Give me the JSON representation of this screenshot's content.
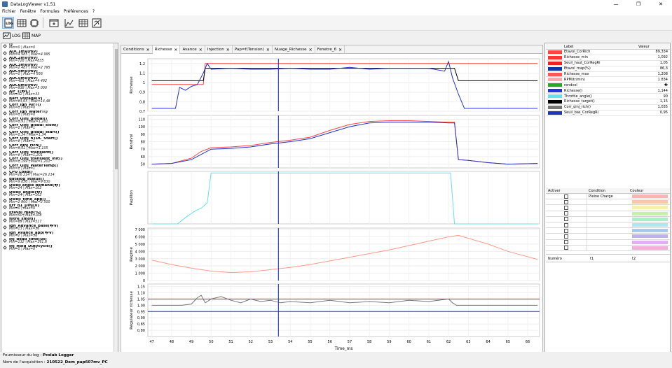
{
  "window": {
    "title": "DataLogViewer v1.51",
    "minimize": "—",
    "maximize": "❐",
    "close": "✕"
  },
  "menu": [
    "Fichier",
    "Fenêtre",
    "Formules",
    "Préférences",
    "?"
  ],
  "subtool": {
    "log_label": "LOG",
    "map_label": "MAP"
  },
  "tabs": [
    {
      "label": "Conditions"
    },
    {
      "label": "Richesse",
      "selected": true
    },
    {
      "label": "Avance"
    },
    {
      "label": "Injection"
    },
    {
      "label": "Pap=f(Tension)"
    },
    {
      "label": "Nuage_Richesse"
    },
    {
      "label": "Fenetre_6"
    }
  ],
  "variables": [
    {
      "name": "()",
      "range": "Min=0 | Max=0"
    },
    {
      "name": "ADC1mV(mV)",
      "range": "Min=4 985 | Max=4 995"
    },
    {
      "name": "ADC2mV(mV)",
      "range": "Min=728 | Max=835"
    },
    {
      "name": "ADC3mV(mV)",
      "range": "Min=2 487 | Max=2 795"
    },
    {
      "name": "ADC4mV(mV)",
      "range": "Min=0 | Max=4 956"
    },
    {
      "name": "ADC5mV(mV)",
      "range": "Min=401 | Max=4 492"
    },
    {
      "name": "ADC6mV(mV)",
      "range": "Min=938 | Max=5 000"
    },
    {
      "name": "Air_T(�C)",
      "range": "Min=32 | Max=33"
    },
    {
      "name": "Batt_voltage(V)",
      "range": "Min=13,65 | Max=14,48"
    },
    {
      "name": "Corr_Ign_AirT()",
      "range": "Min=0 | Max=0"
    },
    {
      "name": "Corr_Ign_WaterT()",
      "range": "Min=0 | Max=0"
    },
    {
      "name": "Corr_Qinj_global()",
      "range": "Min=0,91 | Max=1,201"
    },
    {
      "name": "Corr_Qinj_global_slow()",
      "range": "Min=1 | Max=1"
    },
    {
      "name": "Corr_Qinj_global_start()",
      "range": "Min=1,34 | Max=1,34"
    },
    {
      "name": "Corr_Qinj_nTDC_Start()",
      "range": "Min=1 | Max=1"
    },
    {
      "name": "Corr_qinj_rich()",
      "range": "Min=0,91 | Max=1,105"
    },
    {
      "name": "Corr_Qinj_transient()",
      "range": "Min=1 | Max=1,201"
    },
    {
      "name": "Corr_Qinj_transient_init()",
      "range": "Min=1,199 | Max=1,201"
    },
    {
      "name": "Corr_Qinj_WaterTemp()",
      "range": "Min=1 | Max=1"
    },
    {
      "name": "CPU Load()",
      "range": "Min=26 214 | Max=26 214"
    },
    {
      "name": "datalog_status()",
      "range": "Min=9 830 | Max=9 830"
    },
    {
      "name": "Dwell angle demand(�)",
      "range": "Min=24 | Max=102"
    },
    {
      "name": "Dwell_angle(�)",
      "range": "Min=24 | Max=102"
    },
    {
      "name": "Dwell_time_app()",
      "range": "Min=2 500 | Max=2 500"
    },
    {
      "name": "Err_n1_Uinj(V)",
      "range": "Min=0 | Max=0"
    },
    {
      "name": "Etavol_map(%)",
      "range": "Min=50 | Max=108"
    },
    {
      "name": "filtre_smot()",
      "range": "Min=69 | Max=517"
    },
    {
      "name": "Ign_Advance_base(�V)",
      "range": "Min=13 | Max=36"
    },
    {
      "name": "Ign_Avance_app(�V)",
      "range": "Min=2 | Max=36"
    },
    {
      "name": "Inj_dead_time(us)",
      "range": "Min=132 | Max=161,6"
    },
    {
      "name": "Inj_Hold_Dutycycle()",
      "range": "Min=0 | Max=0"
    }
  ],
  "chart_data": [
    {
      "type": "line",
      "ylabel": "Richesse",
      "ylim": [
        0.7,
        1.25
      ],
      "yticks": [
        "1,2",
        "1,1",
        "1",
        "0,9",
        "0,8",
        "0,7"
      ],
      "series": [
        {
          "name": "Richesse_max",
          "color": "#ff4444",
          "x": [
            47,
            48.5,
            49,
            49.6,
            49.7,
            62.3,
            62.5,
            66.5
          ],
          "y": [
            0.98,
            0.98,
            0.98,
            0.98,
            1.2,
            1.2,
            1.2,
            1.2
          ]
        },
        {
          "name": "Richesse_target()",
          "color": "#000000",
          "x": [
            47,
            48.5,
            49,
            49.6,
            49.7,
            62.3,
            62.5,
            66.5
          ],
          "y": [
            1.02,
            1.02,
            1.02,
            1.02,
            1.15,
            1.15,
            1.02,
            1.02
          ]
        },
        {
          "name": "Richesse()",
          "color": "#2233cc",
          "x": [
            47,
            48.2,
            48.4,
            48.7,
            49,
            49.3,
            49.6,
            49.8,
            50,
            51,
            52,
            53,
            54,
            55,
            56,
            57,
            58,
            59,
            60,
            61,
            61.8,
            62,
            62.2,
            62.5,
            62.8,
            63,
            66.5
          ],
          "y": [
            0.73,
            0.73,
            0.95,
            0.92,
            0.96,
            0.98,
            1.1,
            1.2,
            1.14,
            1.15,
            1.14,
            1.14,
            1.15,
            1.14,
            1.14,
            1.16,
            1.14,
            1.15,
            1.15,
            1.15,
            1.12,
            1.22,
            1.05,
            0.88,
            0.73,
            0.73,
            0.73
          ]
        }
      ]
    },
    {
      "type": "line",
      "ylabel": "Rendvol",
      "ylim": [
        45,
        115
      ],
      "yticks": [
        "110",
        "100",
        "90",
        "80",
        "70",
        "60",
        "50"
      ],
      "series": [
        {
          "name": "Etavol_map(%)",
          "color": "#ff4444",
          "x": [
            47,
            48,
            49,
            49.5,
            50,
            51,
            52,
            53,
            54,
            55,
            56,
            57,
            58,
            59,
            60,
            61,
            62,
            62.3,
            62.5,
            63,
            64,
            65,
            66.5
          ],
          "y": [
            50,
            51,
            58,
            67,
            72,
            73,
            75,
            79,
            82,
            86,
            95,
            103,
            107,
            108,
            108,
            107,
            106,
            106,
            56,
            55,
            52,
            50,
            51
          ]
        },
        {
          "name": "Rendvol",
          "color": "#2233cc",
          "x": [
            47,
            48,
            49,
            49.5,
            50,
            51,
            52,
            53,
            54,
            55,
            56,
            57,
            58,
            59,
            60,
            61,
            62,
            62.3,
            62.5,
            63,
            64,
            65,
            66.5
          ],
          "y": [
            50,
            51,
            56,
            63,
            70,
            71,
            73,
            77,
            80,
            84,
            92,
            100,
            105,
            106,
            106,
            106,
            105,
            105,
            56,
            55,
            52,
            50,
            51
          ]
        }
      ]
    },
    {
      "type": "line",
      "ylabel": "Papillon",
      "ylim": [
        0,
        100
      ],
      "yticks": [],
      "series": [
        {
          "name": "Throttle_angle()",
          "color": "#66e0f0",
          "x": [
            47,
            48.3,
            48.8,
            49.2,
            49.5,
            49.8,
            50,
            50.2,
            62,
            62.1,
            62.3,
            66.5
          ],
          "y": [
            0,
            0,
            15,
            25,
            30,
            40,
            97,
            97,
            97,
            97,
            0,
            0
          ]
        }
      ]
    },
    {
      "type": "line",
      "ylabel": "Régime",
      "ylim": [
        0,
        7200
      ],
      "yticks": [
        "7 000",
        "6 000",
        "5 000",
        "4 000",
        "3 000",
        "2 000",
        "1 000",
        "0"
      ],
      "series": [
        {
          "name": "RPM(tr/min)",
          "color": "#ff9988",
          "x": [
            47,
            48,
            49,
            50,
            51,
            52,
            53,
            54,
            55,
            56,
            57,
            58,
            59,
            60,
            61,
            62,
            62.5,
            63,
            64,
            65,
            66.5
          ],
          "y": [
            2800,
            2200,
            1700,
            1300,
            1100,
            1200,
            1500,
            1800,
            2200,
            2700,
            3200,
            3700,
            4200,
            4800,
            5400,
            6000,
            6200,
            5800,
            5000,
            4000,
            2900
          ]
        }
      ]
    },
    {
      "type": "line",
      "ylabel": "Régulateur richesse",
      "ylim": [
        0.75,
        1.17
      ],
      "yticks": [
        "1,15",
        "1,10",
        "1,05",
        "1,00",
        "0,95",
        "0,90",
        "0,85",
        "0,80"
      ],
      "xlabel": "Time_ms",
      "xlim": [
        46.8,
        66.6
      ],
      "xticks": [
        "47",
        "48",
        "49",
        "50",
        "51",
        "52",
        "53",
        "54",
        "55",
        "56",
        "57",
        "58",
        "59",
        "60",
        "61",
        "62",
        "63",
        "64",
        "65",
        "66"
      ],
      "series": [
        {
          "name": "Seuil_haut_CorRegRi",
          "color": "#cc2222",
          "x": [
            46.8,
            66.6
          ],
          "y": [
            1.05,
            1.05
          ]
        },
        {
          "name": "Seuil_bas_CorRegRi",
          "color": "#2233cc",
          "x": [
            46.8,
            66.6
          ],
          "y": [
            0.95,
            0.95
          ]
        },
        {
          "name": "Corr_qinj_rich()",
          "color": "#777777",
          "x": [
            47,
            48.5,
            49,
            49.3,
            49.5,
            49.7,
            50,
            50.5,
            51,
            51.5,
            52,
            52.5,
            53,
            53.5,
            54,
            55,
            56,
            57,
            58,
            59,
            60,
            61,
            62,
            62.2,
            62.4,
            63,
            66.5
          ],
          "y": [
            1,
            1,
            1.01,
            1.06,
            1.08,
            1.02,
            1.05,
            1.07,
            1.04,
            1.02,
            1.05,
            1.03,
            1.04,
            1.02,
            1.03,
            1.02,
            1.04,
            1.02,
            1.03,
            1.02,
            1.04,
            1.03,
            1.05,
            1.02,
            1,
            1,
            1
          ]
        }
      ]
    }
  ],
  "cursor": {
    "x": 53.4
  },
  "grid": {
    "header": {
      "label": "Label",
      "value": "Valeur"
    },
    "rows": [
      {
        "color": "#ff4444",
        "label": "Etavol_CorRich",
        "value": "89,334"
      },
      {
        "color": "#ff3333",
        "label": "Richesse_min",
        "value": "1,092"
      },
      {
        "color": "#ee2222",
        "label": "Seuil_haut_CorRegRi",
        "value": "1,05"
      },
      {
        "color": "#1133aa",
        "label": "Etavol_map(%)",
        "value": "86,3"
      },
      {
        "color": "#ff5555",
        "label": "Richesse_max",
        "value": "1,208"
      },
      {
        "color": "#ffaaaa",
        "label": "RPM(tr/min)",
        "value": "1 834"
      },
      {
        "color": "#22aa22",
        "label": "rendvol",
        "value": "�"
      },
      {
        "color": "#2233dd",
        "label": "Richesse()",
        "value": "1,144"
      },
      {
        "color": "#66e0f0",
        "label": "Throttle_angle()",
        "value": "90"
      },
      {
        "color": "#000000",
        "label": "Richesse_target()",
        "value": "1,15"
      },
      {
        "color": "#777777",
        "label": "Corr_qinj_rich()",
        "value": "1,035"
      },
      {
        "color": "#2233bb",
        "label": "Seuil_bas_CorRegRi",
        "value": "0,95"
      }
    ]
  },
  "conditions": {
    "header": {
      "activer": "Activer",
      "condition": "Condition",
      "couleur": "Couleur"
    },
    "rows": [
      {
        "condition": "Pleine Charge",
        "color": "#f7b6b6"
      },
      {
        "condition": "",
        "color": "#f8c8a8"
      },
      {
        "condition": "",
        "color": "#f6f0a8"
      },
      {
        "condition": "",
        "color": "#c8f0a8"
      },
      {
        "condition": "",
        "color": "#a8f0c8"
      },
      {
        "condition": "",
        "color": "#a8e8f0"
      },
      {
        "condition": "",
        "color": "#a8c8f0"
      },
      {
        "condition": "",
        "color": "#c0b0f0"
      },
      {
        "condition": "",
        "color": "#e0b0f0"
      },
      {
        "condition": "",
        "color": "#f0b0d8"
      }
    ]
  },
  "numero": {
    "numero": "Numéro",
    "t1": "t1",
    "t2": "t2"
  },
  "status": {
    "provider_label": "Fournisseur du log :",
    "provider": "Pcslab Logger",
    "acq_label": "Nom de l'acquisition :",
    "acq": "210522_Dem_pap607mv_PC"
  }
}
